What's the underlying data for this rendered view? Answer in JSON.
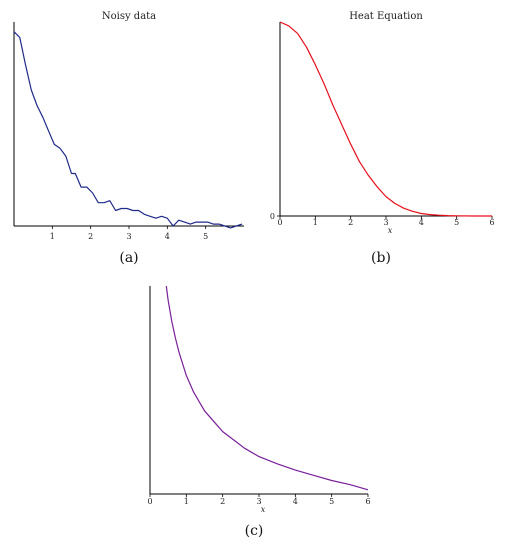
{
  "chart_data": [
    {
      "type": "line",
      "title": "Noisy data",
      "panel_label": "(a)",
      "xlabel": "",
      "ylabel": "",
      "xlim": [
        0,
        6
      ],
      "ylim": [
        0,
        1.05
      ],
      "x_ticks": [
        1,
        2,
        3,
        4,
        5
      ],
      "y_ticks": [],
      "series": [
        {
          "color": "#1f2a8a",
          "x": [
            0,
            0.15,
            0.3,
            0.45,
            0.6,
            0.75,
            0.9,
            1.05,
            1.2,
            1.35,
            1.5,
            1.6,
            1.75,
            1.9,
            2.05,
            2.2,
            2.35,
            2.5,
            2.65,
            2.8,
            2.95,
            3.1,
            3.25,
            3.4,
            3.55,
            3.7,
            3.85,
            4.0,
            4.15,
            4.3,
            4.45,
            4.6,
            4.75,
            4.9,
            5.05,
            5.2,
            5.35,
            5.5,
            5.65,
            5.8,
            5.95
          ],
          "y": [
            1.0,
            0.97,
            0.83,
            0.7,
            0.62,
            0.56,
            0.49,
            0.42,
            0.4,
            0.36,
            0.27,
            0.27,
            0.2,
            0.2,
            0.17,
            0.12,
            0.12,
            0.13,
            0.08,
            0.09,
            0.09,
            0.08,
            0.08,
            0.06,
            0.05,
            0.04,
            0.05,
            0.04,
            0.0,
            0.03,
            0.02,
            0.01,
            0.02,
            0.02,
            0.02,
            0.01,
            0.01,
            0.0,
            -0.01,
            0.0,
            0.01
          ]
        }
      ]
    },
    {
      "type": "line",
      "title": "Heat Equation",
      "panel_label": "(b)",
      "xlabel": "x",
      "ylabel": "",
      "xlim": [
        0,
        6
      ],
      "ylim": [
        0,
        1.0
      ],
      "x_ticks": [
        0,
        1,
        2,
        3,
        4,
        5,
        6
      ],
      "y_ticks": [
        0
      ],
      "series": [
        {
          "color": "#e8101c",
          "x": [
            0,
            0.25,
            0.5,
            0.75,
            1.0,
            1.25,
            1.5,
            1.75,
            2.0,
            2.25,
            2.5,
            2.75,
            3.0,
            3.25,
            3.5,
            3.75,
            4.0,
            4.25,
            4.5,
            4.75,
            5.0,
            5.5,
            6.0
          ],
          "y": [
            1.0,
            0.98,
            0.94,
            0.87,
            0.78,
            0.68,
            0.57,
            0.47,
            0.37,
            0.28,
            0.21,
            0.15,
            0.1,
            0.065,
            0.04,
            0.024,
            0.013,
            0.007,
            0.004,
            0.002,
            0.001,
            0.0,
            0.0
          ]
        }
      ]
    },
    {
      "type": "line",
      "title": "",
      "panel_label": "(c)",
      "xlabel": "x",
      "ylabel": "",
      "xlim": [
        0,
        6
      ],
      "ylim": [
        0,
        1.0
      ],
      "x_ticks": [
        0,
        1,
        2,
        3,
        4,
        5,
        6
      ],
      "y_ticks": [],
      "series": [
        {
          "color": "#7a1f9a",
          "x": [
            0.45,
            0.5,
            0.6,
            0.7,
            0.8,
            1.0,
            1.2,
            1.5,
            1.8,
            2.0,
            2.3,
            2.6,
            3.0,
            3.5,
            4.0,
            4.5,
            5.0,
            5.5,
            6.0
          ],
          "y": [
            1.0,
            0.93,
            0.83,
            0.75,
            0.68,
            0.57,
            0.49,
            0.4,
            0.34,
            0.3,
            0.26,
            0.22,
            0.18,
            0.145,
            0.115,
            0.09,
            0.065,
            0.045,
            0.02
          ]
        }
      ]
    }
  ]
}
